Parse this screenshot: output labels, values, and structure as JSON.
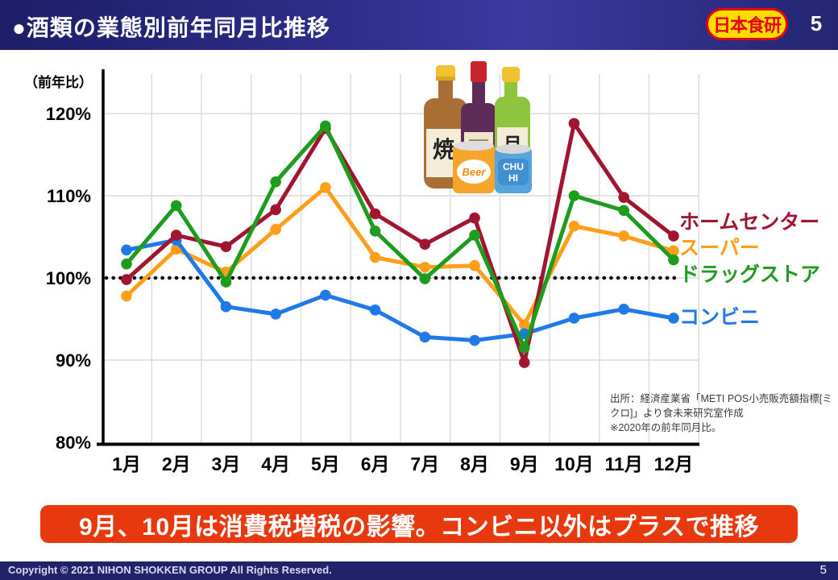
{
  "header": {
    "title": "●酒類の業態別前年同月比推移",
    "logo_text": "日本食研",
    "logo_colors": {
      "background": "#ffdc00",
      "text": "#e60012"
    },
    "page_number": "5"
  },
  "chart_data": {
    "type": "line",
    "title": "酒類の業態別前年同月比推移",
    "ylabel": "（前年比）",
    "x": [
      "1月",
      "2月",
      "3月",
      "4月",
      "5月",
      "6月",
      "7月",
      "8月",
      "9月",
      "10月",
      "11月",
      "12月"
    ],
    "yticks": [
      80,
      90,
      100,
      110,
      120
    ],
    "ytick_labels": [
      "80%",
      "90%",
      "100%",
      "110%",
      "120%"
    ],
    "ylim": [
      80,
      124
    ],
    "grid": true,
    "reference_line": {
      "value": 100,
      "style": "dotted",
      "color": "#000000"
    },
    "legend_position": "right-of-line-ends",
    "series": [
      {
        "id": "home-center",
        "name": "ホームセンター",
        "color": "#a01530",
        "values": [
          99.8,
          105.2,
          103.8,
          108.3,
          118.2,
          107.8,
          104.1,
          107.3,
          89.7,
          118.8,
          109.8,
          105.1
        ]
      },
      {
        "id": "super",
        "name": "スーパー",
        "color": "#ff9e19",
        "values": [
          97.8,
          103.5,
          100.7,
          105.9,
          111.0,
          102.5,
          101.3,
          101.5,
          94.3,
          106.3,
          105.1,
          103.3
        ]
      },
      {
        "id": "drug-store",
        "name": "ドラッグストア",
        "color": "#1e9c1e",
        "values": [
          101.7,
          108.8,
          99.5,
          111.7,
          118.5,
          105.7,
          99.9,
          105.2,
          91.5,
          110.0,
          108.2,
          102.2
        ]
      },
      {
        "id": "convenience",
        "name": "コンビニ",
        "color": "#1f7ae8",
        "values": [
          103.4,
          104.6,
          96.5,
          95.6,
          97.9,
          96.1,
          92.8,
          92.4,
          93.2,
          95.1,
          96.2,
          95.1
        ]
      }
    ]
  },
  "illustration": {
    "shochu_character": "焼",
    "sake_character": "月",
    "beer_label": "Beer",
    "chuhi_line1": "CHU",
    "chuhi_line2": "HI"
  },
  "source": {
    "line1": "出所：経済産業省「METI POS小売販売額指標[ミクロ]」より食未来研究室作成",
    "line2": "※2020年の前年同月比。"
  },
  "banner": {
    "text": "9月、10月は消費税増税の影響。コンビニ以外はプラスで推移",
    "color": "#e8380d"
  },
  "footer": {
    "copyright": "Copyright © 2021 NIHON SHOKKEN GROUP All Rights Reserved.",
    "page_number": "5"
  }
}
